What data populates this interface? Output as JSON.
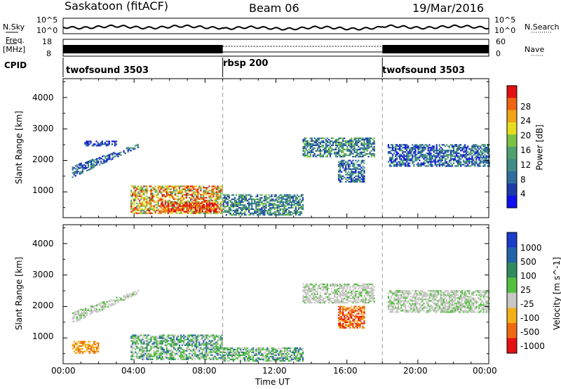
{
  "header": {
    "station": "Saskatoon (fitACF)",
    "beam": "Beam 06",
    "date": "19/Mar/2016"
  },
  "noise_panel": {
    "left_label": "N.Sky",
    "right_label": "N.Search",
    "left_ticks": [
      "10^5",
      "10^0"
    ],
    "right_ticks": [
      "10^5",
      "10^0"
    ]
  },
  "freq_panel": {
    "left_label_1": "Freq.",
    "left_label_2": "[MHz]",
    "right_label": "Nave",
    "left_ticks": [
      "18",
      "8"
    ],
    "right_ticks": [
      "60",
      "0"
    ]
  },
  "cpid": {
    "label": "CPID",
    "segments": [
      {
        "name": "twofsound 3503",
        "start_h": 0,
        "end_h": 9
      },
      {
        "name": "rbsp 200",
        "start_h": 9,
        "end_h": 18
      },
      {
        "name": "twofsound 3503",
        "start_h": 18,
        "end_h": 24
      }
    ]
  },
  "x_axis": {
    "label": "Time UT",
    "ticks": [
      "00:00",
      "04:00",
      "08:00",
      "12:00",
      "16:00",
      "20:00",
      "00:00"
    ]
  },
  "power_panel": {
    "ylabel": "Slant Range [km]",
    "yticks": [
      "1000",
      "2000",
      "3000",
      "4000"
    ],
    "colorbar_label": "Power [dB]",
    "colorbar_ticks": [
      "4",
      "8",
      "12",
      "16",
      "20",
      "24",
      "28"
    ],
    "colors": [
      "#1010ee",
      "#1c3da8",
      "#2e6e9c",
      "#3e8c84",
      "#50a070",
      "#7cc242",
      "#e8dc1e",
      "#f0a418",
      "#ee6410",
      "#e21010"
    ]
  },
  "velocity_panel": {
    "ylabel": "Slant Range [km]",
    "yticks": [
      "1000",
      "2000",
      "3000",
      "4000"
    ],
    "colorbar_label": "Velocity [m s^-1]",
    "colorbar_ticks": [
      "1000",
      "500",
      "100",
      "25",
      "-25",
      "-100",
      "-500",
      "-1000"
    ],
    "colors": [
      "#1a3cc8",
      "#2364a8",
      "#2e8c5c",
      "#54c040",
      "#c8c8c4",
      "#f2b01a",
      "#ee6a10",
      "#e21212"
    ]
  },
  "chart_data": [
    {
      "type": "heatmap",
      "title": "Power",
      "x_range_hours": [
        0,
        24
      ],
      "y_range_km": [
        180,
        4600
      ],
      "regions": [
        {
          "x": [
            0.5,
            4.2
          ],
          "y_start": [
            1450,
            2400
          ],
          "y_end": [
            1800,
            2500
          ],
          "level": "blue-green"
        },
        {
          "x": [
            1.2,
            3.0
          ],
          "y": [
            2450,
            2600
          ],
          "level": "blue"
        },
        {
          "x": [
            3.8,
            9.0
          ],
          "y": [
            300,
            1200
          ],
          "level": "orange-red"
        },
        {
          "x": [
            5.5,
            8.7
          ],
          "y": [
            350,
            650
          ],
          "level": "red"
        },
        {
          "x": [
            9.0,
            13.5
          ],
          "y": [
            250,
            900
          ],
          "level": "green-blue"
        },
        {
          "x": [
            13.5,
            17.5
          ],
          "y": [
            2100,
            2700
          ],
          "level": "green-blue"
        },
        {
          "x": [
            15.5,
            17.0
          ],
          "y": [
            1300,
            2000
          ],
          "level": "blue-green"
        },
        {
          "x": [
            18.3,
            24.0
          ],
          "y": [
            1800,
            2500
          ],
          "level": "blue-green"
        }
      ]
    },
    {
      "type": "heatmap",
      "title": "Velocity",
      "x_range_hours": [
        0,
        24
      ],
      "y_range_km": [
        180,
        4600
      ],
      "regions": [
        {
          "x": [
            0.5,
            4.2
          ],
          "y_start": [
            1450,
            2400
          ],
          "y_end": [
            1800,
            2500
          ],
          "level": "gray"
        },
        {
          "x": [
            0.5,
            2.0
          ],
          "y": [
            500,
            900
          ],
          "level": "orange"
        },
        {
          "x": [
            3.8,
            9.0
          ],
          "y": [
            300,
            1100
          ],
          "level": "green-gray"
        },
        {
          "x": [
            9.0,
            13.5
          ],
          "y": [
            250,
            700
          ],
          "level": "green-gray"
        },
        {
          "x": [
            13.5,
            17.5
          ],
          "y": [
            2100,
            2700
          ],
          "level": "gray"
        },
        {
          "x": [
            15.5,
            17.0
          ],
          "y": [
            1300,
            2000
          ],
          "level": "orange-red"
        },
        {
          "x": [
            18.3,
            24.0
          ],
          "y": [
            1800,
            2500
          ],
          "level": "gray"
        }
      ]
    }
  ]
}
